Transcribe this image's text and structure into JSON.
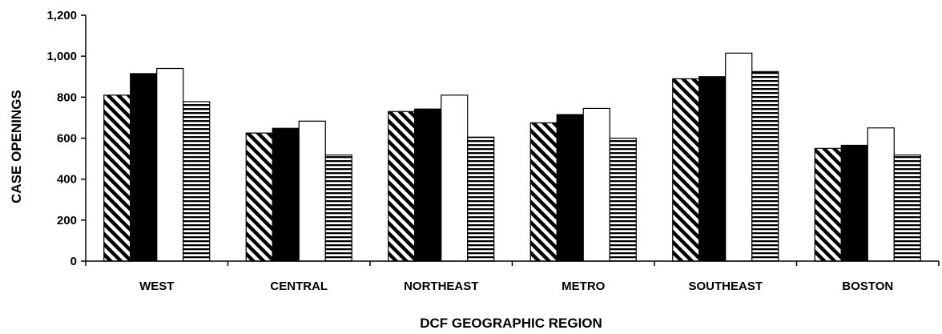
{
  "chart_data": {
    "type": "bar",
    "xlabel": "DCF GEOGRAPHIC REGION",
    "ylabel": "CASE OPENINGS",
    "categories": [
      "WEST",
      "CENTRAL",
      "NORTHEAST",
      "METRO",
      "SOUTHEAST",
      "BOSTON"
    ],
    "series": [
      {
        "pattern": "diagonal-hatch",
        "values": [
          810,
          625,
          730,
          675,
          890,
          550
        ]
      },
      {
        "pattern": "solid-black",
        "values": [
          915,
          648,
          742,
          715,
          900,
          565
        ]
      },
      {
        "pattern": "white",
        "values": [
          940,
          683,
          810,
          745,
          1015,
          650
        ]
      },
      {
        "pattern": "horizontal-stripes",
        "values": [
          778,
          518,
          605,
          600,
          925,
          518
        ]
      }
    ],
    "yticks": [
      "0",
      "200",
      "400",
      "600",
      "800",
      "1,000",
      "1,200"
    ],
    "ylim": [
      0,
      1200
    ],
    "grid": false,
    "legend": "none",
    "colors": {
      "axis": "#000000",
      "bar_stroke": "#000000",
      "fill_dark": "#000000",
      "fill_light": "#ffffff"
    }
  }
}
